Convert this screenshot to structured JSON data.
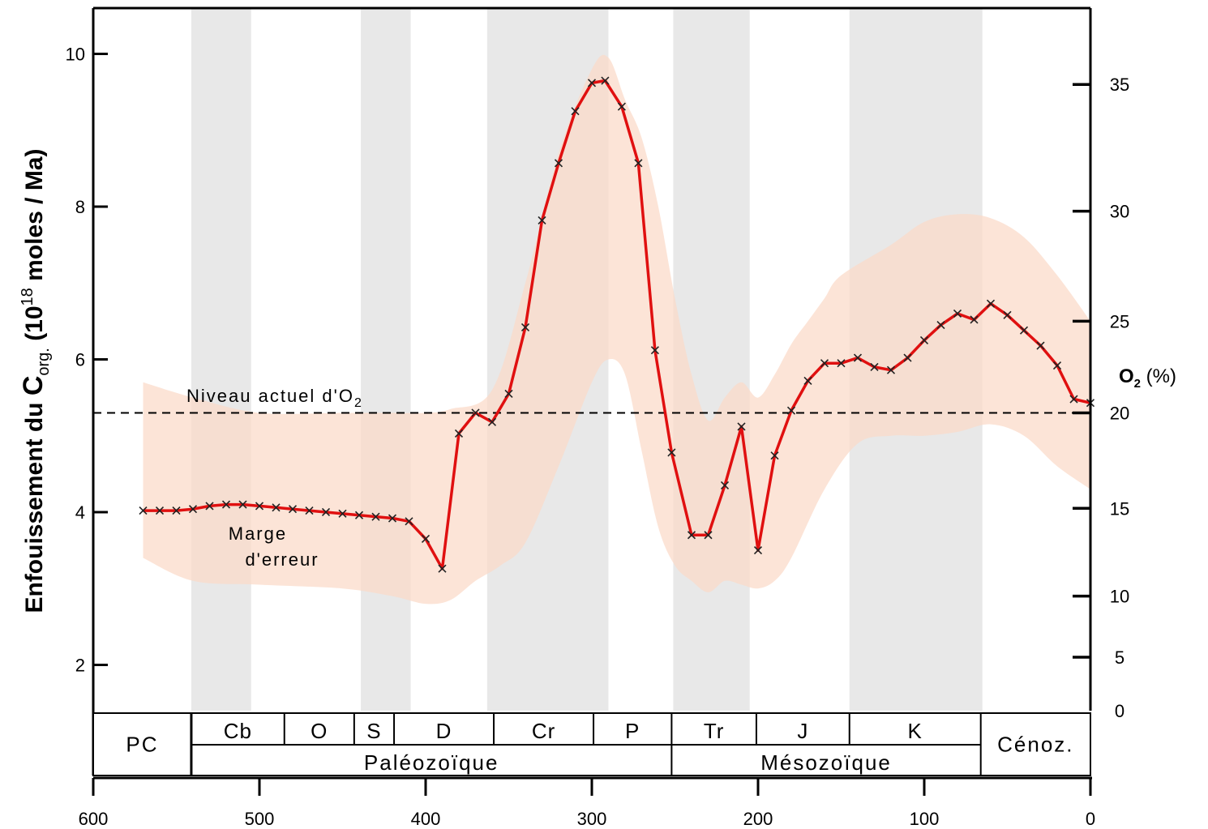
{
  "chart_data": {
    "type": "line",
    "ylabel": {
      "prefix": "Enfouissement du ",
      "main": "C",
      "sub": "org.",
      "mid": " (10",
      "sup": "18",
      "suffix": " moles / Ma)"
    },
    "y2label": {
      "main": "O",
      "sub": "2",
      "rest": " (%)"
    },
    "xlim": [
      600,
      0
    ],
    "ylim": [
      1.4,
      10.6
    ],
    "x_ticks": [
      "600",
      "500",
      "400",
      "300",
      "200",
      "100",
      "0"
    ],
    "y_ticks": [
      "2",
      "4",
      "6",
      "8",
      "10"
    ],
    "y2_ticks": [
      "35",
      "30",
      "25",
      "20",
      "15",
      "10",
      "5",
      "0"
    ],
    "y2_tick_positions": [
      9.6,
      7.94,
      6.5,
      5.3,
      4.05,
      2.9,
      2.1,
      1.4
    ],
    "reference_line": {
      "y": 5.3,
      "label_main": "Niveau actuel d'O",
      "label_sub": "2"
    },
    "error_band_label": [
      "Marge",
      "d'erreur"
    ],
    "band_upper": [
      [
        570,
        5.7
      ],
      [
        540,
        5.5
      ],
      [
        500,
        5.3
      ],
      [
        450,
        5.3
      ],
      [
        420,
        5.3
      ],
      [
        400,
        5.3
      ],
      [
        385,
        5.35
      ],
      [
        360,
        5.6
      ],
      [
        340,
        7.0
      ],
      [
        320,
        8.7
      ],
      [
        300,
        9.8
      ],
      [
        290,
        9.95
      ],
      [
        280,
        9.4
      ],
      [
        270,
        8.9
      ],
      [
        260,
        8.0
      ],
      [
        250,
        6.8
      ],
      [
        240,
        5.8
      ],
      [
        230,
        5.2
      ],
      [
        220,
        5.5
      ],
      [
        210,
        5.7
      ],
      [
        200,
        5.5
      ],
      [
        190,
        5.8
      ],
      [
        180,
        6.2
      ],
      [
        170,
        6.5
      ],
      [
        160,
        6.8
      ],
      [
        150,
        7.1
      ],
      [
        120,
        7.5
      ],
      [
        100,
        7.8
      ],
      [
        80,
        7.9
      ],
      [
        60,
        7.85
      ],
      [
        40,
        7.6
      ],
      [
        20,
        7.1
      ],
      [
        0,
        6.5
      ]
    ],
    "band_lower": [
      [
        570,
        3.4
      ],
      [
        540,
        3.1
      ],
      [
        500,
        3.05
      ],
      [
        450,
        3.0
      ],
      [
        420,
        2.9
      ],
      [
        400,
        2.8
      ],
      [
        385,
        2.85
      ],
      [
        370,
        3.1
      ],
      [
        355,
        3.3
      ],
      [
        340,
        3.6
      ],
      [
        320,
        4.6
      ],
      [
        300,
        5.7
      ],
      [
        290,
        6.0
      ],
      [
        280,
        5.8
      ],
      [
        270,
        4.8
      ],
      [
        260,
        3.8
      ],
      [
        250,
        3.3
      ],
      [
        240,
        3.1
      ],
      [
        230,
        2.95
      ],
      [
        220,
        3.1
      ],
      [
        210,
        3.05
      ],
      [
        200,
        3.0
      ],
      [
        190,
        3.1
      ],
      [
        180,
        3.4
      ],
      [
        160,
        4.3
      ],
      [
        140,
        4.9
      ],
      [
        120,
        5.0
      ],
      [
        100,
        5.0
      ],
      [
        80,
        5.05
      ],
      [
        60,
        5.15
      ],
      [
        40,
        5.0
      ],
      [
        20,
        4.6
      ],
      [
        0,
        4.3
      ]
    ],
    "series": [
      {
        "color": "#e01010",
        "points": [
          [
            570,
            4.02
          ],
          [
            560,
            4.02
          ],
          [
            550,
            4.02
          ],
          [
            540,
            4.04
          ],
          [
            530,
            4.08
          ],
          [
            520,
            4.1
          ],
          [
            510,
            4.1
          ],
          [
            500,
            4.08
          ],
          [
            490,
            4.06
          ],
          [
            480,
            4.04
          ],
          [
            470,
            4.02
          ],
          [
            460,
            4.0
          ],
          [
            450,
            3.98
          ],
          [
            440,
            3.96
          ],
          [
            430,
            3.94
          ],
          [
            420,
            3.92
          ],
          [
            410,
            3.88
          ],
          [
            400,
            3.65
          ],
          [
            390,
            3.26
          ],
          [
            380,
            5.03
          ],
          [
            370,
            5.3
          ],
          [
            360,
            5.18
          ],
          [
            350,
            5.55
          ],
          [
            340,
            6.42
          ],
          [
            330,
            7.82
          ],
          [
            320,
            8.57
          ],
          [
            310,
            9.25
          ],
          [
            300,
            9.62
          ],
          [
            292,
            9.65
          ],
          [
            282,
            9.31
          ],
          [
            272,
            8.57
          ],
          [
            262,
            6.12
          ],
          [
            252,
            4.78
          ],
          [
            240,
            3.7
          ],
          [
            230,
            3.7
          ],
          [
            220,
            4.35
          ],
          [
            210,
            5.12
          ],
          [
            200,
            3.5
          ],
          [
            190,
            4.74
          ],
          [
            180,
            5.33
          ],
          [
            170,
            5.72
          ],
          [
            160,
            5.95
          ],
          [
            150,
            5.95
          ],
          [
            140,
            6.02
          ],
          [
            130,
            5.9
          ],
          [
            120,
            5.86
          ],
          [
            110,
            6.02
          ],
          [
            100,
            6.25
          ],
          [
            90,
            6.45
          ],
          [
            80,
            6.6
          ],
          [
            70,
            6.52
          ],
          [
            60,
            6.73
          ],
          [
            50,
            6.58
          ],
          [
            40,
            6.38
          ],
          [
            30,
            6.18
          ],
          [
            20,
            5.92
          ],
          [
            10,
            5.48
          ],
          [
            0,
            5.43
          ]
        ]
      }
    ],
    "shaded_periods": [
      [
        541,
        505
      ],
      [
        439,
        409
      ],
      [
        363,
        290
      ],
      [
        251,
        205
      ],
      [
        145,
        65
      ]
    ],
    "periods": [
      {
        "label": "Cb",
        "from": 541,
        "to": 485
      },
      {
        "label": "O",
        "from": 485,
        "to": 443
      },
      {
        "label": "S",
        "from": 443,
        "to": 419
      },
      {
        "label": "D",
        "from": 419,
        "to": 359
      },
      {
        "label": "Cr",
        "from": 359,
        "to": 299
      },
      {
        "label": "P",
        "from": 299,
        "to": 252
      },
      {
        "label": "Tr",
        "from": 252,
        "to": 201
      },
      {
        "label": "J",
        "from": 201,
        "to": 145
      },
      {
        "label": "K",
        "from": 145,
        "to": 66
      }
    ],
    "eras": [
      {
        "label": "PC",
        "from": 600,
        "to": 541
      },
      {
        "label": "Paléozoïque",
        "from": 541,
        "to": 252
      },
      {
        "label": "Mésozoïque",
        "from": 252,
        "to": 66
      },
      {
        "label": "Cénoz.",
        "from": 66,
        "to": 0
      }
    ]
  }
}
